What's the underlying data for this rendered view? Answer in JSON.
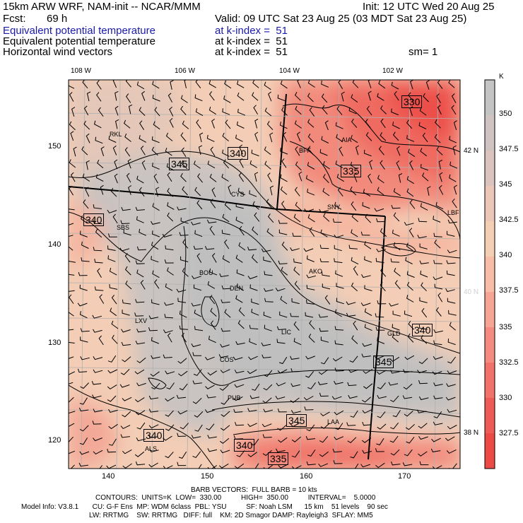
{
  "header": {
    "model": "15km ARW WRF, NAM-init -- NCAR/MMM",
    "init": "Init: 12 UTC Wed 20 Aug 25",
    "fcst_label": "Fcst:",
    "fcst_value": "69 h",
    "valid": "Valid: 09 UTC Sat 23 Aug 25 (03 MDT Sat 23 Aug 25)",
    "lines": [
      {
        "field": "Equivalent potential temperature",
        "level": "at k-index =  51",
        "extra": ""
      },
      {
        "field": "Equivalent potential temperature",
        "level": "at k-index =  51",
        "extra": ""
      },
      {
        "field": "Horizontal wind vectors",
        "level": "at k-index =  51",
        "extra": "sm= 1"
      }
    ],
    "colors": {
      "highlight": "#1a1aa8"
    }
  },
  "map": {
    "lon_labels": [
      "108 W",
      "106 W",
      "104 W",
      "102 W"
    ],
    "lat_labels": [
      "42 N",
      "40 N",
      "38 N"
    ],
    "x_ticks": [
      "140",
      "150",
      "160",
      "170"
    ],
    "y_ticks": [
      "150",
      "140",
      "130",
      "120"
    ],
    "stations": [
      "RKL",
      "BFF",
      "AIA",
      "CYS",
      "SNY",
      "LBF",
      "SBS",
      "BOU",
      "DEN",
      "AKO",
      "LXV",
      "LIC",
      "GLD",
      "COS",
      "PUB",
      "LAA",
      "ALS"
    ],
    "contour_labels": [
      "330",
      "335",
      "340",
      "345",
      "340",
      "345",
      "340",
      "345",
      "340",
      "340",
      "335"
    ]
  },
  "colorbar": {
    "unit": "K",
    "labels": [
      "350",
      "347.5",
      "345",
      "342.5",
      "340",
      "337.5",
      "335",
      "332.5",
      "330",
      "327.5"
    ],
    "colors": [
      "#c4c4c4",
      "#cfc4c2",
      "#dcc4be",
      "#eac7b6",
      "#f5cfb4",
      "#f7bda6",
      "#f6a595",
      "#f58b80",
      "#f2726a",
      "#ee5a55",
      "#ec4a45"
    ]
  },
  "footer": {
    "barb": "BARB VECTORS:  FULL BARB = 10 kts",
    "contours": "CONTOURS:  UNITS=K  LOW=  330.00          HIGH=  350.00          INTERVAL=    5.0000",
    "model_info_1": "Model Info: V3.8.1       CU: G-F Ens  MP: WDM 6class  PBL: YSU          SF: Noah LSM      15 km    51 levels    90 sec",
    "model_info_2": "LW: RRTMG    SW: RRTMG   DIFF: full    KM: 2D Smagor DAMP: Rayleigh3  SFLAY: MM5"
  }
}
